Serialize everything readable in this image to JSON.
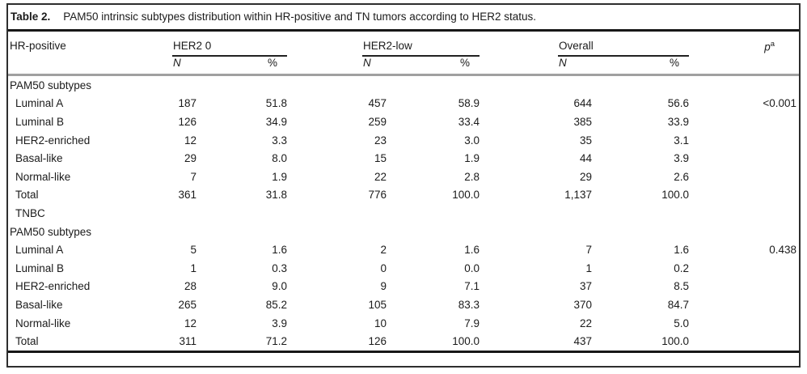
{
  "table": {
    "label": "Table 2.",
    "title": "PAM50 intrinsic subtypes distribution within HR-positive and TN tumors according to HER2 status.",
    "row_header": "HR-positive",
    "groups": [
      {
        "label": "HER2 0",
        "sub": [
          "N",
          "%"
        ]
      },
      {
        "label": "HER2-low",
        "sub": [
          "N",
          "%"
        ]
      },
      {
        "label": "Overall",
        "sub": [
          "N",
          "%"
        ]
      }
    ],
    "p_header": {
      "base": "p",
      "sup": "a"
    },
    "rows": [
      {
        "label": "PAM50 subtypes",
        "indent": false,
        "section": true,
        "values": [
          "",
          "",
          "",
          "",
          "",
          ""
        ],
        "p": ""
      },
      {
        "label": "Luminal A",
        "indent": true,
        "section": false,
        "values": [
          "187",
          "51.8",
          "457",
          "58.9",
          "644",
          "56.6"
        ],
        "p": "<0.001"
      },
      {
        "label": "Luminal B",
        "indent": true,
        "section": false,
        "values": [
          "126",
          "34.9",
          "259",
          "33.4",
          "385",
          "33.9"
        ],
        "p": ""
      },
      {
        "label": "HER2-enriched",
        "indent": true,
        "section": false,
        "values": [
          "12",
          "3.3",
          "23",
          "3.0",
          "35",
          "3.1"
        ],
        "p": ""
      },
      {
        "label": "Basal-like",
        "indent": true,
        "section": false,
        "values": [
          "29",
          "8.0",
          "15",
          "1.9",
          "44",
          "3.9"
        ],
        "p": ""
      },
      {
        "label": "Normal-like",
        "indent": true,
        "section": false,
        "values": [
          "7",
          "1.9",
          "22",
          "2.8",
          "29",
          "2.6"
        ],
        "p": ""
      },
      {
        "label": "Total",
        "indent": true,
        "section": false,
        "values": [
          "361",
          "31.8",
          "776",
          "100.0",
          "1,137",
          "100.0"
        ],
        "p": ""
      },
      {
        "label": "TNBC",
        "indent": true,
        "section": true,
        "values": [
          "",
          "",
          "",
          "",
          "",
          ""
        ],
        "p": ""
      },
      {
        "label": "PAM50 subtypes",
        "indent": false,
        "section": true,
        "values": [
          "",
          "",
          "",
          "",
          "",
          ""
        ],
        "p": ""
      },
      {
        "label": "Luminal A",
        "indent": true,
        "section": false,
        "values": [
          "5",
          "1.6",
          "2",
          "1.6",
          "7",
          "1.6"
        ],
        "p": "0.438"
      },
      {
        "label": "Luminal B",
        "indent": true,
        "section": false,
        "values": [
          "1",
          "0.3",
          "0",
          "0.0",
          "1",
          "0.2"
        ],
        "p": ""
      },
      {
        "label": "HER2-enriched",
        "indent": true,
        "section": false,
        "values": [
          "28",
          "9.0",
          "9",
          "7.1",
          "37",
          "8.5"
        ],
        "p": ""
      },
      {
        "label": "Basal-like",
        "indent": true,
        "section": false,
        "values": [
          "265",
          "85.2",
          "105",
          "83.3",
          "370",
          "84.7"
        ],
        "p": ""
      },
      {
        "label": "Normal-like",
        "indent": true,
        "section": false,
        "values": [
          "12",
          "3.9",
          "10",
          "7.9",
          "22",
          "5.0"
        ],
        "p": ""
      },
      {
        "label": "Total",
        "indent": true,
        "section": false,
        "values": [
          "311",
          "71.2",
          "126",
          "100.0",
          "437",
          "100.0"
        ],
        "p": ""
      }
    ]
  }
}
